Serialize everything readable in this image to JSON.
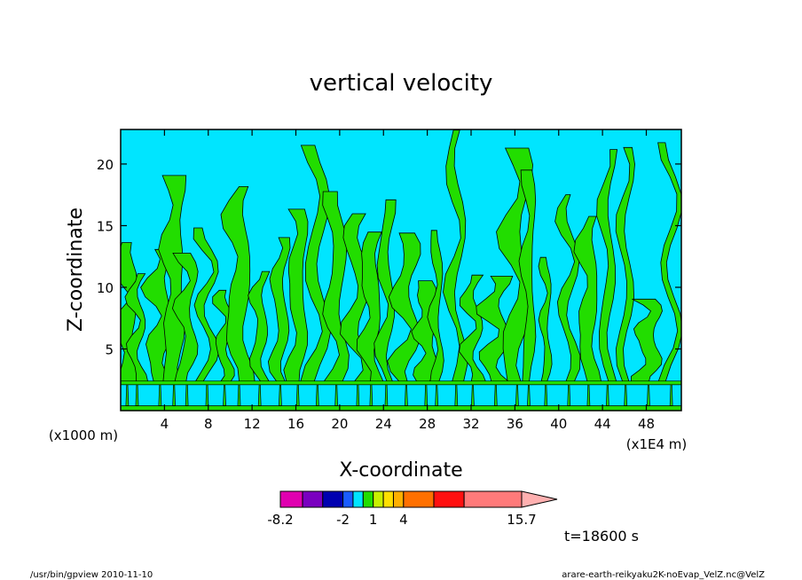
{
  "chart_data": {
    "type": "heatmap",
    "title": "vertical velocity",
    "xlabel": "X-coordinate",
    "ylabel": "Z-coordinate",
    "x_unit_left": "(x1000 m)",
    "x_unit_right": "(x1E4 m)",
    "xlim": [
      0,
      51.2
    ],
    "ylim": [
      0,
      22.8
    ],
    "x_ticks": [
      4,
      8,
      12,
      16,
      20,
      24,
      28,
      32,
      36,
      40,
      44,
      48
    ],
    "y_ticks": [
      5,
      10,
      15,
      20
    ],
    "field_description_colors": {
      "negative_weak": "#00e5ff",
      "positive_weak": "#22dd00",
      "contour": "#000000"
    },
    "low_level_bands": [
      {
        "z_from": 0.0,
        "z_to": 0.4,
        "level": "positive_weak"
      },
      {
        "z_from": 0.4,
        "z_to": 2.1,
        "level": "negative_weak"
      },
      {
        "z_from": 2.1,
        "z_to": 2.4,
        "level": "positive_weak"
      }
    ],
    "colorbar": {
      "levels": [
        -8.2,
        -6,
        -4,
        -2,
        -1,
        0,
        1,
        2,
        3,
        4,
        7,
        10,
        15.7
      ],
      "colors": [
        "#e000b0",
        "#7a00c0",
        "#0000b0",
        "#1a5cff",
        "#00e5ff",
        "#22dd00",
        "#c8f000",
        "#ffe000",
        "#ffb000",
        "#ff7000",
        "#ff1010",
        "#ff7a7a",
        "#ffb0b0"
      ],
      "labels": [
        "-8.2",
        "-2",
        "1",
        "4",
        "15.7"
      ],
      "extend": "max"
    },
    "time_label": "t=18600 s"
  },
  "footer": {
    "left": "/usr/bin/gpview  2010-11-10",
    "right": "arare-earth-reikyaku2K-noEvap_VelZ.nc@VelZ"
  }
}
